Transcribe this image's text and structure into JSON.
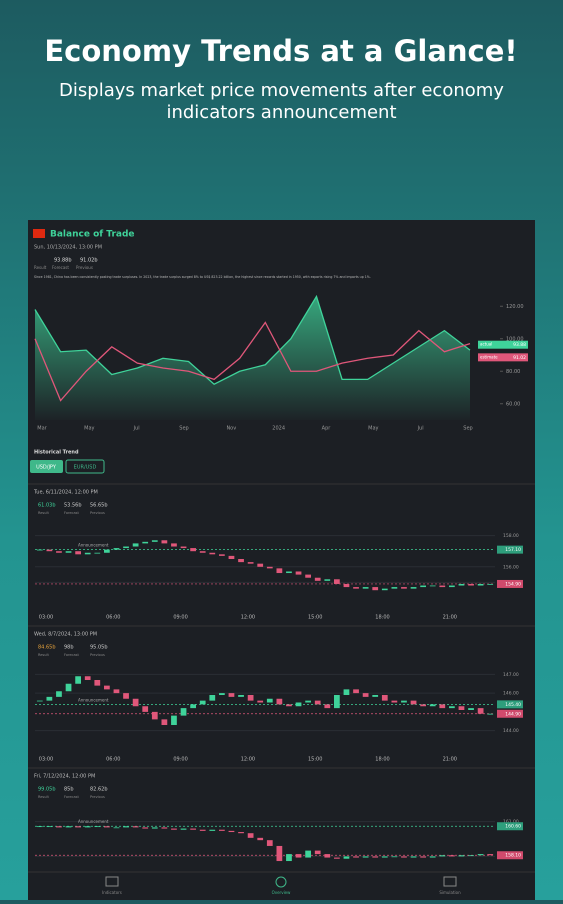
{
  "header": {
    "title": "Economy Trends at a Glance!",
    "subtitle": "Displays market price movements after economy indicators announcement"
  },
  "indicator": {
    "name": "Balance of Trade",
    "date": "Sun, 10/13/2024, 13:00 PM",
    "result": "93.88b",
    "forecast": "91.02b",
    "result_label": "Result",
    "forecast_label": "Forecast",
    "previous_label": "Previous",
    "description": "Since 1981, China has been consistently posting trade surpluses. In 2023, the trade surplus surged 8% to US$ 823.22 billion, the highest since records started in 1950, with exports rising 7% and imports up 1%."
  },
  "chart_data": {
    "type": "line",
    "x_labels": [
      "Mar",
      "May",
      "Jul",
      "Sep",
      "Nov",
      "2024",
      "Apr",
      "May",
      "Jul",
      "Sep"
    ],
    "series": [
      {
        "name": "actual",
        "color": "#3fd39a",
        "values": [
          118,
          92,
          93,
          78,
          82,
          88,
          86,
          72,
          80,
          84,
          100,
          126,
          75,
          75,
          85,
          95,
          105,
          93
        ]
      },
      {
        "name": "estimate",
        "color": "#e0577a",
        "values": [
          100,
          62,
          80,
          95,
          85,
          82,
          80,
          75,
          88,
          110,
          80,
          80,
          85,
          88,
          90,
          105,
          92,
          97
        ]
      }
    ],
    "ylim": [
      50,
      130
    ],
    "yticks": [
      {
        "value": 60,
        "label": "60.00"
      },
      {
        "value": 80,
        "label": "80.00"
      },
      {
        "value": 100,
        "label": "100.00"
      },
      {
        "value": 120,
        "label": "120.00"
      }
    ],
    "tags": [
      {
        "value": 93.88,
        "label": "93.88"
      },
      {
        "value": 91.02,
        "label": "91.02"
      }
    ]
  },
  "history": {
    "title": "Historical Trend",
    "tabs": [
      "USD/JPY",
      "EUR/USD"
    ],
    "announcement": "Announcement",
    "hours": [
      "03:00",
      "06:00",
      "09:00",
      "12:00",
      "15:00",
      "18:00",
      "21:00"
    ],
    "panels": [
      {
        "date": "Tue, 6/11/2024, 12:00 PM",
        "values": [
          "61.03b",
          "53.56b",
          "56.65b"
        ],
        "ylim": [
          154,
          159
        ],
        "yticks": [
          {
            "value": 155,
            "label": "155.00"
          },
          {
            "value": 156,
            "label": "156.00"
          },
          {
            "value": 158,
            "label": "158.00"
          }
        ],
        "announce_price": {
          "value": 157.1,
          "label": "157.10"
        },
        "last_price": {
          "value": 154.9,
          "label": "154.90"
        },
        "prices": [
          157.1,
          157.0,
          156.9,
          157.0,
          156.8,
          156.9,
          156.9,
          157.1,
          157.2,
          157.3,
          157.5,
          157.6,
          157.7,
          157.5,
          157.3,
          157.2,
          157.0,
          156.9,
          156.8,
          156.7,
          156.5,
          156.3,
          156.2,
          156.0,
          155.9,
          155.6,
          155.7,
          155.5,
          155.3,
          155.1,
          155.2,
          154.9,
          154.7,
          154.6,
          154.7,
          154.5,
          154.6,
          154.7,
          154.6,
          154.7,
          154.8,
          154.8,
          154.7,
          154.8,
          154.9,
          154.8,
          154.9,
          154.9
        ]
      },
      {
        "date": "Wed, 8/7/2024, 13:00 PM",
        "values": [
          "84.65b",
          "98b",
          "95.05b"
        ],
        "ylim": [
          143.5,
          147.5
        ],
        "yticks": [
          {
            "value": 144,
            "label": "144.00"
          },
          {
            "value": 146,
            "label": "146.00"
          },
          {
            "value": 147,
            "label": "147.00"
          }
        ],
        "announce_price": {
          "value": 145.4,
          "label": "145.40"
        },
        "last_price": {
          "value": 144.9,
          "label": "144.90"
        },
        "prices": [
          145.6,
          145.8,
          146.1,
          146.5,
          146.9,
          146.7,
          146.4,
          146.2,
          146.0,
          145.7,
          145.3,
          145.0,
          144.6,
          144.3,
          144.8,
          145.2,
          145.4,
          145.6,
          145.9,
          146.0,
          145.8,
          145.9,
          145.6,
          145.5,
          145.7,
          145.4,
          145.3,
          145.5,
          145.6,
          145.4,
          145.2,
          145.9,
          146.2,
          146.0,
          145.8,
          145.9,
          145.6,
          145.5,
          145.6,
          145.4,
          145.3,
          145.4,
          145.2,
          145.3,
          145.1,
          145.2,
          144.9,
          144.9
        ]
      },
      {
        "date": "Fri, 7/12/2024, 12:00 PM",
        "values": [
          "99.05b",
          "85b",
          "82.62b"
        ],
        "ylim": [
          157,
          162
        ],
        "yticks": [
          {
            "value": 158,
            "label": "158.00"
          },
          {
            "value": 161,
            "label": "161.00"
          }
        ],
        "announce_price": {
          "value": 160.6,
          "label": "160.60"
        },
        "last_price": {
          "value": 158.1,
          "label": "158.10"
        },
        "prices": [
          160.6,
          160.6,
          160.5,
          160.6,
          160.5,
          160.6,
          160.6,
          160.5,
          160.5,
          160.6,
          160.5,
          160.4,
          160.5,
          160.4,
          160.3,
          160.4,
          160.3,
          160.2,
          160.3,
          160.2,
          160.1,
          160.0,
          159.6,
          159.4,
          158.9,
          157.6,
          158.2,
          157.9,
          158.5,
          158.2,
          157.9,
          157.8,
          158.0,
          157.9,
          158.0,
          157.9,
          158.0,
          158.0,
          157.9,
          158.0,
          157.9,
          158.0,
          158.1,
          158.0,
          158.1,
          158.1,
          158.2,
          158.1
        ]
      }
    ]
  },
  "nav": [
    "Indicators",
    "Overview",
    "Simulation"
  ]
}
